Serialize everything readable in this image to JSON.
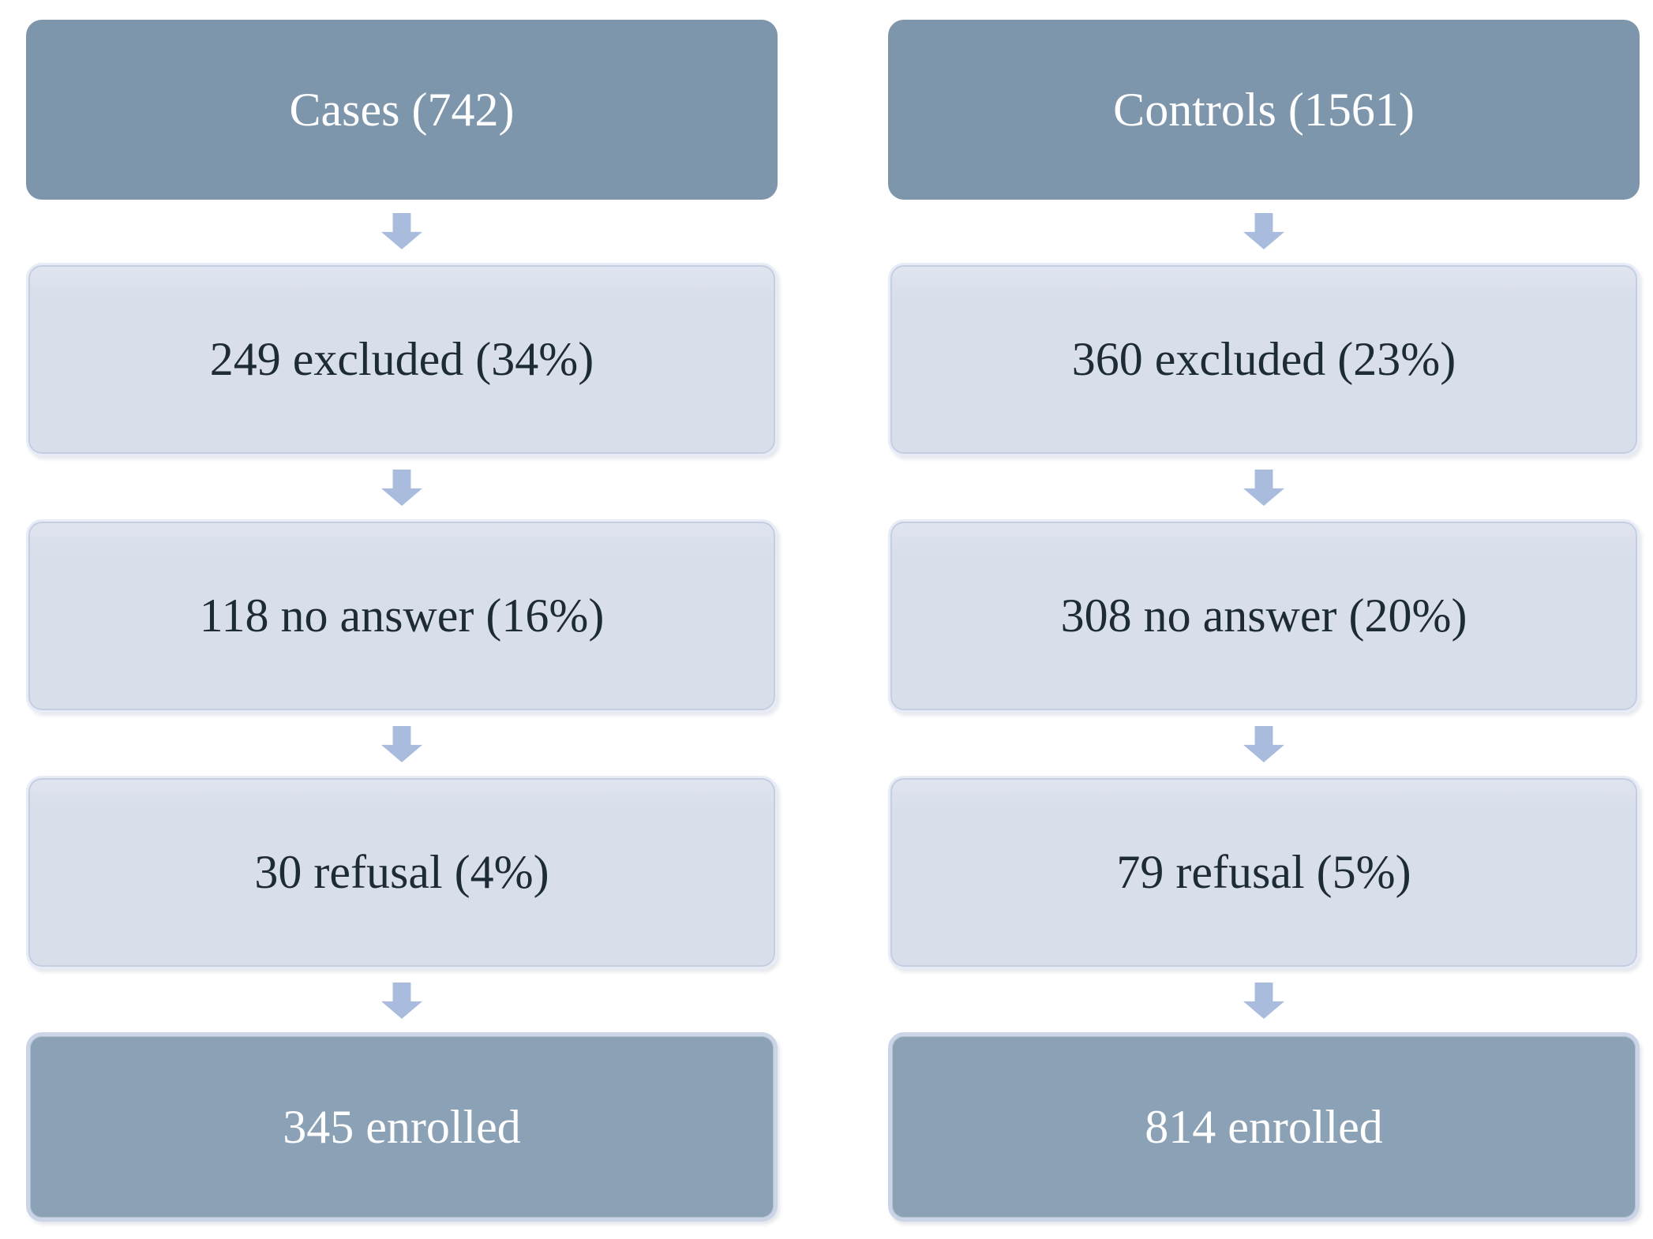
{
  "figure": {
    "type": "enrollment-flowchart",
    "description_visible_text_only": true
  },
  "colors": {
    "header_fill": "#7d96ac",
    "header_text": "#ffffff",
    "step_fill": "#d9dfea",
    "step_text": "#1d2b36",
    "step_border": "#e7ecf6",
    "final_fill": "#8ba1b5",
    "final_border": "#ccd5e8",
    "final_text": "#ffffff",
    "arrow": "#a9bcde"
  },
  "columns": [
    {
      "id": "cases",
      "header": "Cases (742)",
      "steps": [
        "249 excluded (34%)",
        "118 no answer (16%)",
        "30 refusal (4%)"
      ],
      "final": "345 enrolled"
    },
    {
      "id": "controls",
      "header": "Controls (1561)",
      "steps": [
        "360 excluded (23%)",
        "308 no answer (20%)",
        "79 refusal (5%)"
      ],
      "final": "814 enrolled"
    }
  ]
}
